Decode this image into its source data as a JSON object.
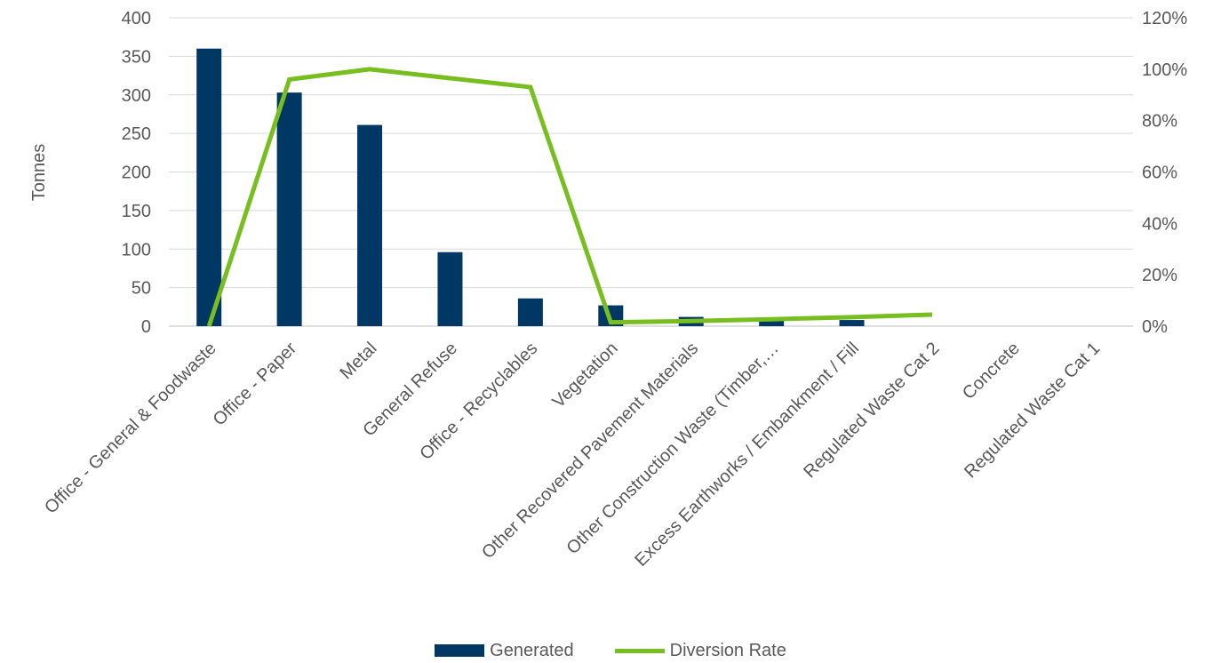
{
  "chart_data": {
    "type": "bar",
    "categories": [
      "Office - General & Foodwaste",
      "Office - Paper",
      "Metal",
      "General Refuse",
      "Office - Recyclables",
      "Vegetation",
      "Other Recovered Pavement Materials",
      "Other Construction Waste (Timber,…",
      "Excess Earthworks / Embankment / Fill",
      "Regulated Waste Cat 2",
      "Concrete",
      "Regulated Waste Cat 1"
    ],
    "series": [
      {
        "name": "Generated",
        "type": "bar",
        "axis": "left",
        "color": "#003865",
        "values": [
          360,
          303,
          261,
          96,
          36,
          27,
          12,
          10,
          8,
          0,
          0,
          0
        ]
      },
      {
        "name": "Diversion Rate",
        "type": "line",
        "axis": "right",
        "color": "#78BE20",
        "values": [
          0,
          0.96,
          1.0,
          0.965,
          0.93,
          0.015,
          0.02,
          0.027,
          0.035,
          0.045,
          null,
          null
        ]
      }
    ],
    "ylabel": "Tonnes",
    "ylim": [
      0,
      400
    ],
    "yticks": [
      "0",
      "50",
      "100",
      "150",
      "200",
      "250",
      "300",
      "350",
      "400"
    ],
    "y2lim": [
      0,
      1.2
    ],
    "y2ticks": [
      "0%",
      "20%",
      "40%",
      "60%",
      "80%",
      "100%",
      "120%"
    ],
    "grid": "horizontal",
    "legend_position": "bottom"
  }
}
